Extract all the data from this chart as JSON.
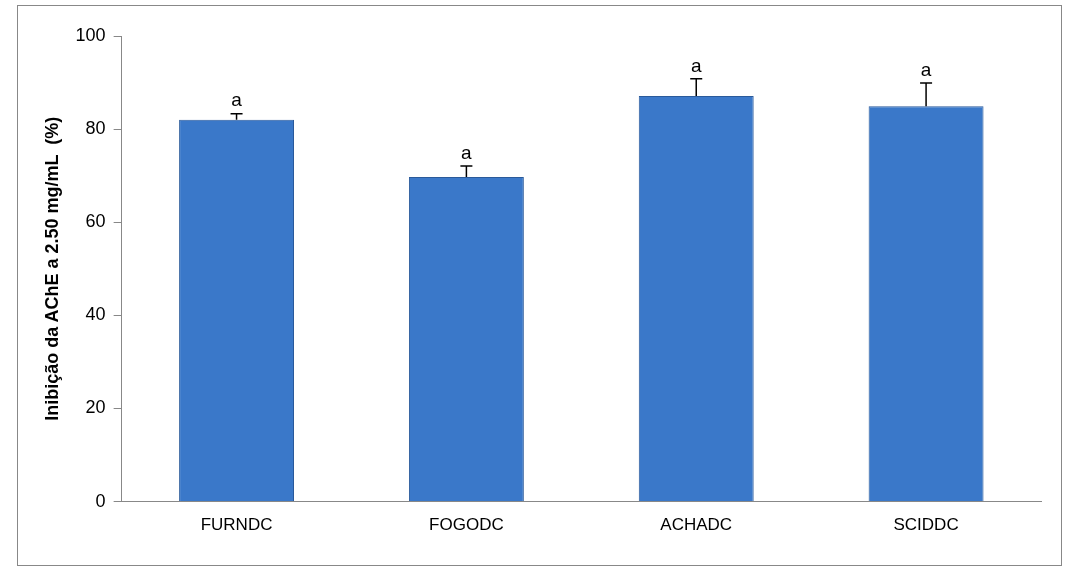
{
  "chart_data": {
    "type": "bar",
    "ylabel": "Inibição da AChE a 2.50 mg/mL  (%)",
    "categories": [
      "FURNDC",
      "FOGODC",
      "ACHADC",
      "SCIDDC"
    ],
    "values": [
      82.0,
      69.7,
      87.1,
      84.9
    ],
    "errors": [
      [
        82.0,
        83.3
      ],
      [
        69.7,
        72.1
      ],
      [
        87.1,
        90.8
      ],
      [
        84.9,
        89.9
      ]
    ],
    "color": "#3a78c9",
    "ylim": [
      0,
      100
    ],
    "yticks": [
      0,
      20,
      40,
      60,
      80,
      100
    ],
    "grid": false,
    "legend": false,
    "annotations": [
      "a",
      "a",
      "a",
      "a"
    ]
  }
}
